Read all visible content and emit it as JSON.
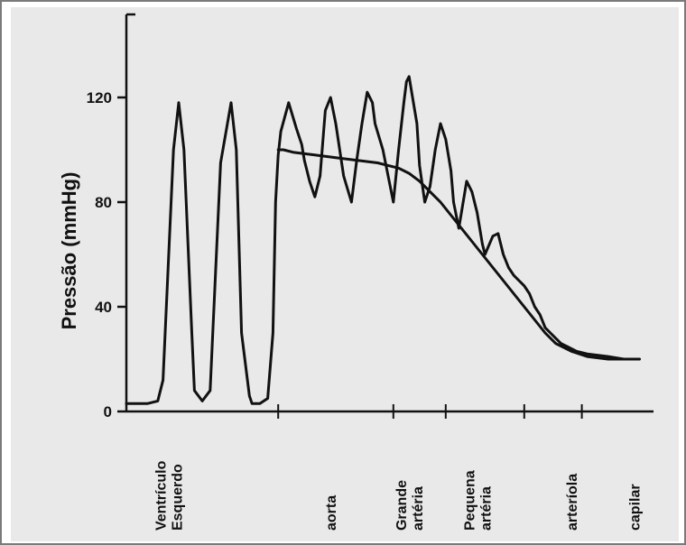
{
  "chart_data": {
    "type": "line",
    "title": "",
    "ylabel": "Pressão (mmHg)",
    "xlabel": "",
    "ylim": [
      0,
      150
    ],
    "yticks": [
      0,
      40,
      80,
      120
    ],
    "grid": false,
    "legend": "none",
    "colors": {
      "background": "#e9e9e9",
      "line": "#111111"
    },
    "categories": [
      {
        "lines": [
          "Ventrículo",
          "Esquerdo"
        ],
        "x": 0.08
      },
      {
        "lines": [
          "aorta"
        ],
        "x": 0.39
      },
      {
        "lines": [
          "Grande",
          "artéria"
        ],
        "x": 0.54
      },
      {
        "lines": [
          "Pequena",
          "artéria"
        ],
        "x": 0.67
      },
      {
        "lines": [
          "arteríola"
        ],
        "x": 0.85
      },
      {
        "lines": [
          "capilar"
        ],
        "x": 0.97
      }
    ],
    "boundaries": [
      0.29,
      0.51,
      0.61,
      0.76,
      0.87
    ],
    "series": [
      {
        "x": [
          0.0,
          0.04,
          0.06,
          0.07,
          0.09,
          0.1,
          0.11,
          0.125,
          0.13,
          0.145,
          0.16,
          0.18,
          0.2,
          0.21,
          0.22,
          0.235,
          0.24,
          0.255,
          0.27,
          0.28,
          0.285,
          0.29,
          0.295,
          0.31,
          0.325,
          0.335,
          0.34,
          0.35,
          0.36,
          0.37,
          0.38,
          0.39,
          0.4,
          0.415,
          0.43,
          0.44,
          0.45,
          0.46,
          0.47,
          0.475,
          0.49,
          0.5,
          0.51,
          0.52,
          0.53,
          0.535,
          0.54,
          0.545,
          0.555,
          0.56,
          0.57,
          0.58,
          0.59,
          0.6,
          0.61,
          0.62,
          0.625,
          0.635,
          0.64,
          0.65,
          0.66,
          0.67,
          0.68,
          0.685,
          0.7,
          0.71,
          0.72,
          0.73,
          0.74,
          0.75,
          0.76,
          0.77,
          0.78,
          0.79,
          0.8,
          0.81,
          0.82,
          0.83,
          0.84,
          0.86,
          0.88,
          0.92,
          0.95,
          0.98
        ],
        "y": [
          3,
          3,
          4,
          12,
          100,
          118,
          100,
          30,
          8,
          4,
          8,
          95,
          118,
          100,
          30,
          6,
          3,
          3,
          5,
          30,
          80,
          98,
          107,
          118,
          108,
          102,
          96,
          88,
          82,
          90,
          115,
          120,
          110,
          90,
          80,
          96,
          110,
          122,
          118,
          110,
          100,
          90,
          80,
          100,
          118,
          126,
          128,
          122,
          110,
          94,
          80,
          86,
          100,
          110,
          104,
          92,
          80,
          70,
          76,
          88,
          84,
          76,
          64,
          60,
          67,
          68,
          60,
          55,
          52,
          50,
          48,
          45,
          40,
          37,
          32,
          30,
          28,
          26,
          25,
          23,
          22,
          21,
          20,
          20
        ]
      },
      {
        "x": [
          0.29,
          0.3,
          0.32,
          0.36,
          0.4,
          0.44,
          0.48,
          0.5,
          0.52,
          0.54,
          0.56,
          0.58,
          0.6,
          0.62,
          0.64,
          0.66,
          0.68,
          0.7,
          0.72,
          0.74,
          0.76,
          0.78,
          0.8,
          0.82,
          0.85,
          0.88,
          0.92,
          0.95,
          0.98
        ],
        "y": [
          100,
          100,
          99,
          98,
          97,
          96,
          95,
          94,
          93,
          91,
          88,
          84,
          80,
          75,
          70,
          65,
          60,
          55,
          50,
          45,
          40,
          35,
          30,
          26,
          23,
          21,
          20,
          20,
          20
        ]
      }
    ]
  }
}
